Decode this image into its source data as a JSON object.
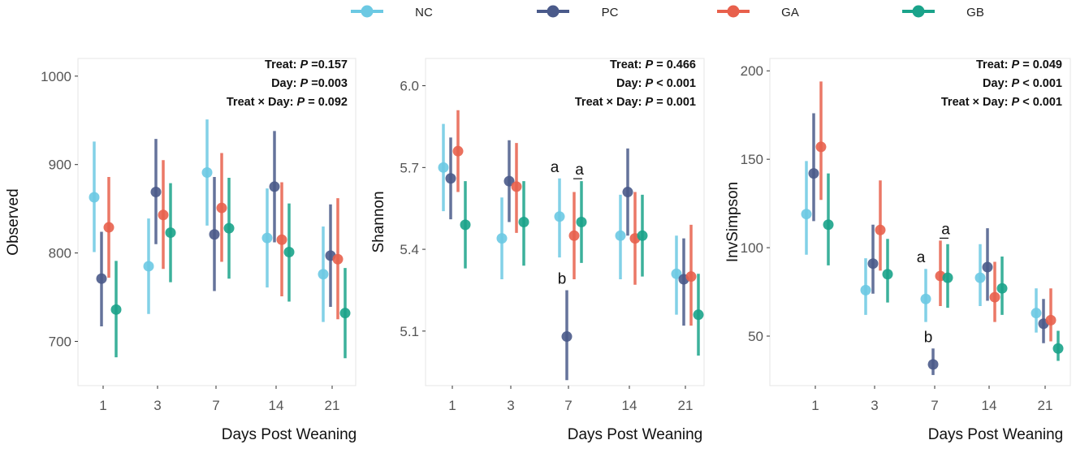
{
  "legend": [
    {
      "label": "NC",
      "color": "#6cc9e3"
    },
    {
      "label": "PC",
      "color": "#4a5a8a"
    },
    {
      "label": "GA",
      "color": "#e8604c"
    },
    {
      "label": "GB",
      "color": "#1aa38a"
    }
  ],
  "chart_data": [
    {
      "type": "dot-errorbar",
      "ylabel": "Observed",
      "xlabel": "Days Post Weaning",
      "categories": [
        "1",
        "3",
        "7",
        "14",
        "21"
      ],
      "ylim": [
        650,
        1020
      ],
      "yticks": [
        700,
        800,
        900,
        1000
      ],
      "stats": [
        "Treat: P =0.157",
        "Day: P =0.003",
        "Treat × Day: P = 0.092"
      ],
      "series": [
        {
          "name": "NC",
          "values": [
            863,
            785,
            891,
            817,
            776
          ],
          "lower": [
            801,
            731,
            831,
            761,
            722
          ],
          "upper": [
            926,
            839,
            951,
            873,
            830
          ]
        },
        {
          "name": "PC",
          "values": [
            771,
            869,
            821,
            875,
            797
          ],
          "lower": [
            717,
            810,
            757,
            812,
            739
          ],
          "upper": [
            824,
            929,
            886,
            938,
            855
          ]
        },
        {
          "name": "GA",
          "values": [
            829,
            843,
            851,
            815,
            793
          ],
          "lower": [
            772,
            782,
            790,
            751,
            725
          ],
          "upper": [
            886,
            905,
            913,
            880,
            862
          ]
        },
        {
          "name": "GB",
          "values": [
            736,
            823,
            828,
            801,
            732
          ],
          "lower": [
            682,
            767,
            771,
            745,
            681
          ],
          "upper": [
            791,
            879,
            885,
            856,
            783
          ]
        }
      ],
      "annotations": []
    },
    {
      "type": "dot-errorbar",
      "ylabel": "Shannon",
      "xlabel": "Days Post Weaning",
      "categories": [
        "1",
        "3",
        "7",
        "14",
        "21"
      ],
      "ylim": [
        4.9,
        6.1
      ],
      "yticks": [
        5.1,
        5.4,
        5.7,
        6.0
      ],
      "tick_labels": [
        "5.1",
        "5.4",
        "5.7",
        "6.0"
      ],
      "stats": [
        "Treat: P = 0.466",
        "Day: P < 0.001",
        "Treat × Day: P = 0.001"
      ],
      "series": [
        {
          "name": "NC",
          "values": [
            5.7,
            5.44,
            5.52,
            5.45,
            5.31
          ],
          "lower": [
            5.54,
            5.29,
            5.37,
            5.29,
            5.16
          ],
          "upper": [
            5.86,
            5.59,
            5.66,
            5.6,
            5.45
          ]
        },
        {
          "name": "PC",
          "values": [
            5.66,
            5.65,
            5.08,
            5.61,
            5.29
          ],
          "lower": [
            5.51,
            5.5,
            4.92,
            5.45,
            5.12
          ],
          "upper": [
            5.81,
            5.8,
            5.25,
            5.77,
            5.44
          ]
        },
        {
          "name": "GA",
          "values": [
            5.76,
            5.63,
            5.45,
            5.44,
            5.3
          ],
          "lower": [
            5.61,
            5.46,
            5.29,
            5.27,
            5.12
          ],
          "upper": [
            5.91,
            5.79,
            5.61,
            5.61,
            5.49
          ]
        },
        {
          "name": "GB",
          "values": [
            5.49,
            5.5,
            5.5,
            5.45,
            5.16
          ],
          "lower": [
            5.33,
            5.34,
            5.35,
            5.3,
            5.01
          ],
          "upper": [
            5.65,
            5.65,
            5.65,
            5.6,
            5.31
          ]
        }
      ],
      "annotations": [
        {
          "text": "a",
          "category": "7",
          "series": "NC",
          "underline": false
        },
        {
          "text": "a",
          "category": "7",
          "series": "GA-GB",
          "underline": true
        },
        {
          "text": "b",
          "category": "7",
          "series": "PC",
          "underline": false
        }
      ]
    },
    {
      "type": "dot-errorbar",
      "ylabel": "InvSimpson",
      "xlabel": "Days Post Weaning",
      "categories": [
        "1",
        "3",
        "7",
        "14",
        "21"
      ],
      "ylim": [
        22,
        207
      ],
      "yticks": [
        50,
        100,
        150,
        200
      ],
      "stats": [
        "Treat: P = 0.049",
        "Day: P < 0.001",
        "Treat × Day: P < 0.001"
      ],
      "series": [
        {
          "name": "NC",
          "values": [
            119,
            76,
            71,
            83,
            63
          ],
          "lower": [
            96,
            62,
            58,
            67,
            52
          ],
          "upper": [
            149,
            94,
            88,
            102,
            77
          ]
        },
        {
          "name": "PC",
          "values": [
            142,
            91,
            34,
            89,
            57
          ],
          "lower": [
            115,
            74,
            28,
            70,
            46
          ],
          "upper": [
            176,
            113,
            43,
            111,
            71
          ]
        },
        {
          "name": "GA",
          "values": [
            157,
            110,
            84,
            72,
            59
          ],
          "lower": [
            127,
            87,
            67,
            58,
            47
          ],
          "upper": [
            194,
            138,
            104,
            92,
            77
          ]
        },
        {
          "name": "GB",
          "values": [
            113,
            85,
            83,
            77,
            43
          ],
          "lower": [
            90,
            69,
            66,
            62,
            36
          ],
          "upper": [
            142,
            105,
            102,
            95,
            53
          ]
        }
      ],
      "annotations": [
        {
          "text": "a",
          "category": "7",
          "series": "NC",
          "underline": false
        },
        {
          "text": "a",
          "category": "7",
          "series": "GA-GB",
          "underline": true
        },
        {
          "text": "b",
          "category": "7",
          "series": "PC",
          "underline": false
        }
      ]
    }
  ]
}
